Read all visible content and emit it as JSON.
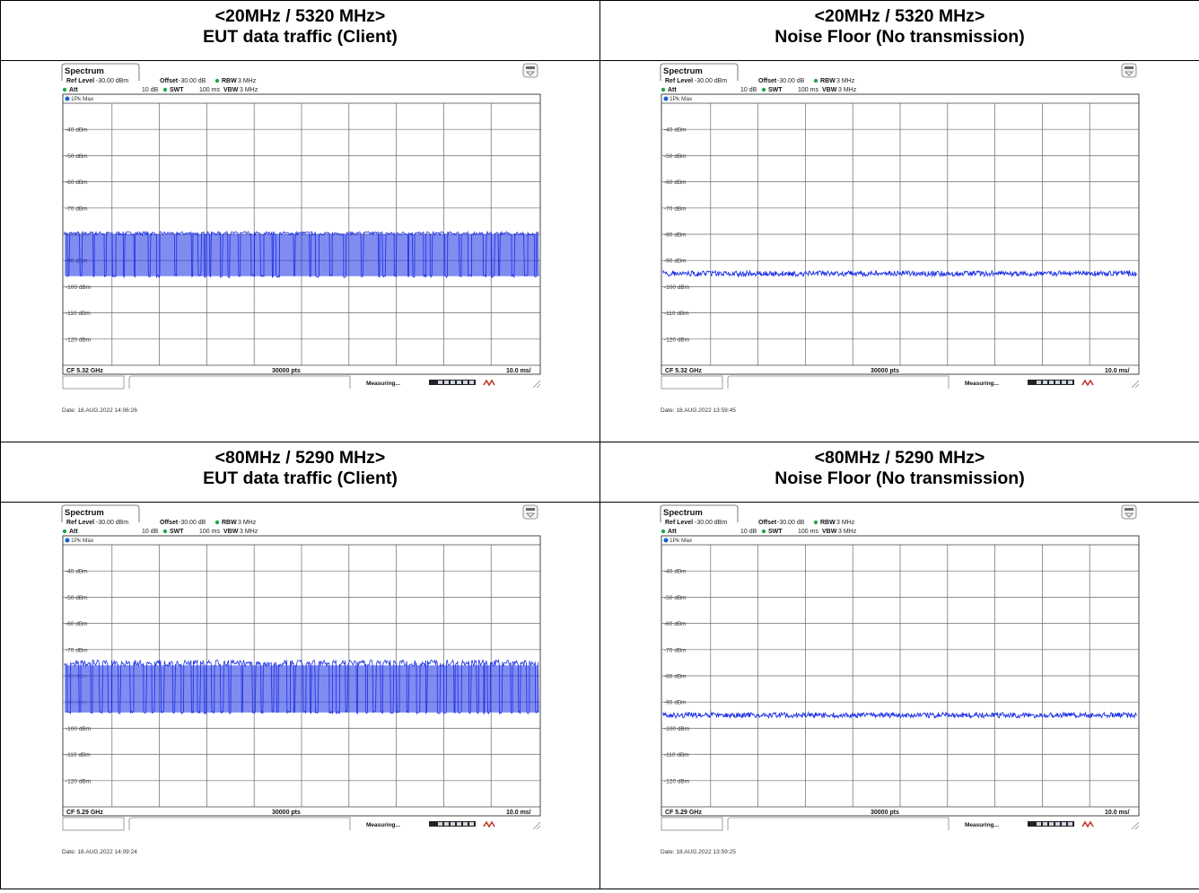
{
  "panels": [
    {
      "title_line1": "<20MHz / 5320 MHz>",
      "title_line2": "EUT data traffic (Client)",
      "tab": "Spectrum",
      "ref_level_label": "Ref Level",
      "ref_level": "-30.00 dBm",
      "offset_label": "Offset",
      "offset": "-30.00 dB",
      "rbw_label": "RBW",
      "rbw": "3 MHz",
      "att_label": "Att",
      "att": "10 dB",
      "swt_label": "SWT",
      "swt": "100 ms",
      "vbw_label": "VBW",
      "vbw": "3 MHz",
      "trace": "1Pk Max",
      "cf": "CF 5.32 GHz",
      "pts": "30000 pts",
      "div": "10.0 ms/",
      "status": "Measuring...",
      "date": "Date: 18.AUG.2022  14:06:26",
      "mode": "traffic",
      "top_dbm": -80,
      "bottom_dbm": -96,
      "blank": "-80 dBm"
    },
    {
      "title_line1": "<20MHz / 5320 MHz>",
      "title_line2": "Noise Floor (No transmission)",
      "tab": "Spectrum",
      "ref_level_label": "Ref Level",
      "ref_level": "-30.00 dBm",
      "offset_label": "Offset",
      "offset": "-30.00 dB",
      "rbw_label": "RBW",
      "rbw": "3 MHz",
      "att_label": "Att",
      "att": "10 dB",
      "swt_label": "SWT",
      "swt": "100 ms",
      "vbw_label": "VBW",
      "vbw": "3 MHz",
      "trace": "1Pk Max",
      "cf": "CF 5.32 GHz",
      "pts": "30000 pts",
      "div": "10.0 ms/",
      "status": "Measuring...",
      "date": "Date: 18.AUG.2022  13:59:45",
      "mode": "noise",
      "level_dbm": -95
    },
    {
      "title_line1": "<80MHz / 5290 MHz>",
      "title_line2": "EUT data traffic (Client)",
      "tab": "Spectrum",
      "ref_level_label": "Ref Level",
      "ref_level": "-30.00 dBm",
      "offset_label": "Offset",
      "offset": "-30.00 dB",
      "rbw_label": "RBW",
      "rbw": "3 MHz",
      "att_label": "Att",
      "att": "10 dB",
      "swt_label": "SWT",
      "swt": "100 ms",
      "vbw_label": "VBW",
      "vbw": "3 MHz",
      "trace": "1Pk Max",
      "cf": "CF 5.29 GHz",
      "pts": "30000 pts",
      "div": "10.0 ms/",
      "status": "Measuring...",
      "date": "Date: 18.AUG.2022  14:09:24",
      "mode": "traffic",
      "top_dbm": -76,
      "bottom_dbm": -94,
      "blank": "-80 dBm,-90 dBm"
    },
    {
      "title_line1": "<80MHz / 5290 MHz>",
      "title_line2": "Noise Floor (No transmission)",
      "tab": "Spectrum",
      "ref_level_label": "Ref Level",
      "ref_level": "-30.00 dBm",
      "offset_label": "Offset",
      "offset": "-30.00 dB",
      "rbw_label": "RBW",
      "rbw": "3 MHz",
      "att_label": "Att",
      "att": "10 dB",
      "swt_label": "SWT",
      "swt": "100 ms",
      "vbw_label": "VBW",
      "vbw": "3 MHz",
      "trace": "1Pk Max",
      "cf": "CF 5.29 GHz",
      "pts": "30000 pts",
      "div": "10.0 ms/",
      "status": "Measuring...",
      "date": "Date: 18.AUG.2022  13:59:25",
      "mode": "noise",
      "level_dbm": -95
    }
  ],
  "y_labels": [
    "-40 dBm",
    "-50 dBm",
    "-60 dBm",
    "-70 dBm",
    "-80 dBm",
    "-90 dBm",
    "-100 dBm",
    "-110 dBm",
    "-120 dBm"
  ],
  "y_values": [
    -40,
    -50,
    -60,
    -70,
    -80,
    -90,
    -100,
    -110,
    -120
  ],
  "colors": {
    "trace": "#1a2ee6",
    "trace_dot": "#1a5fd6",
    "att_dot": "#22a64a",
    "grid": "#6a6a6a"
  }
}
